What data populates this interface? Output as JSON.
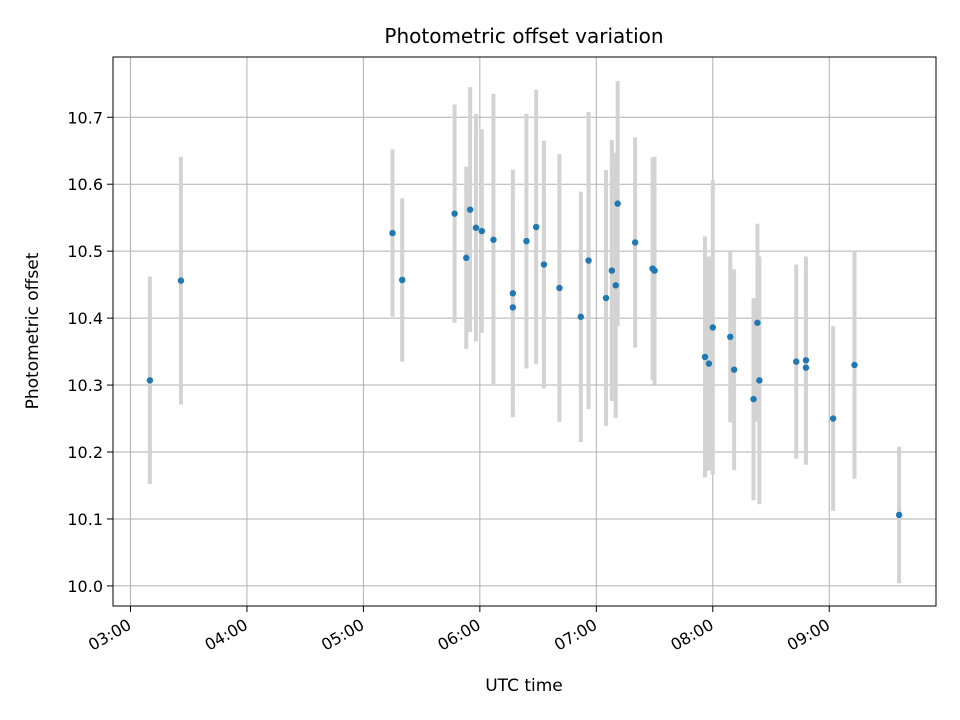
{
  "chart_data": {
    "type": "scatter",
    "title": "Photometric offset variation",
    "xlabel": "UTC time",
    "ylabel": "Photometric offset",
    "x_ticks": [
      "03:00",
      "04:00",
      "05:00",
      "06:00",
      "07:00",
      "08:00",
      "09:00"
    ],
    "y_ticks": [
      "10.0",
      "10.1",
      "10.2",
      "10.3",
      "10.4",
      "10.5",
      "10.6",
      "10.7"
    ],
    "xlim": [
      "02:51",
      "09:55"
    ],
    "ylim": [
      9.97,
      10.79
    ],
    "grid": true,
    "colors": {
      "point": "#1f77b4",
      "errorbar": "#d3d3d3",
      "grid": "#b0b0b0"
    },
    "series": [
      {
        "points": [
          {
            "x": "03:10",
            "y": 10.307,
            "err": 0.155
          },
          {
            "x": "03:26",
            "y": 10.456,
            "err": 0.185
          },
          {
            "x": "05:15",
            "y": 10.527,
            "err": 0.125
          },
          {
            "x": "05:20",
            "y": 10.457,
            "err": 0.122
          },
          {
            "x": "05:47",
            "y": 10.556,
            "err": 0.163
          },
          {
            "x": "05:53",
            "y": 10.49,
            "err": 0.136
          },
          {
            "x": "05:55",
            "y": 10.562,
            "err": 0.183
          },
          {
            "x": "05:58",
            "y": 10.535,
            "err": 0.17
          },
          {
            "x": "06:01",
            "y": 10.53,
            "err": 0.152
          },
          {
            "x": "06:07",
            "y": 10.517,
            "err": 0.218
          },
          {
            "x": "06:17",
            "y": 10.416,
            "err": 0.16
          },
          {
            "x": "06:17",
            "y": 10.437,
            "err": 0.185
          },
          {
            "x": "06:24",
            "y": 10.515,
            "err": 0.19
          },
          {
            "x": "06:29",
            "y": 10.536,
            "err": 0.205
          },
          {
            "x": "06:33",
            "y": 10.48,
            "err": 0.185
          },
          {
            "x": "06:41",
            "y": 10.445,
            "err": 0.2
          },
          {
            "x": "06:52",
            "y": 10.402,
            "err": 0.187
          },
          {
            "x": "06:56",
            "y": 10.486,
            "err": 0.222
          },
          {
            "x": "07:05",
            "y": 10.43,
            "err": 0.191
          },
          {
            "x": "07:08",
            "y": 10.471,
            "err": 0.195
          },
          {
            "x": "07:10",
            "y": 10.449,
            "err": 0.198
          },
          {
            "x": "07:11",
            "y": 10.571,
            "err": 0.183
          },
          {
            "x": "07:20",
            "y": 10.513,
            "err": 0.157
          },
          {
            "x": "07:29",
            "y": 10.474,
            "err": 0.166
          },
          {
            "x": "07:30",
            "y": 10.471,
            "err": 0.17
          },
          {
            "x": "07:56",
            "y": 10.342,
            "err": 0.18
          },
          {
            "x": "07:58",
            "y": 10.332,
            "err": 0.16
          },
          {
            "x": "08:00",
            "y": 10.386,
            "err": 0.22
          },
          {
            "x": "08:09",
            "y": 10.372,
            "err": 0.128
          },
          {
            "x": "08:11",
            "y": 10.323,
            "err": 0.15
          },
          {
            "x": "08:21",
            "y": 10.279,
            "err": 0.151
          },
          {
            "x": "08:23",
            "y": 10.393,
            "err": 0.148
          },
          {
            "x": "08:24",
            "y": 10.307,
            "err": 0.185
          },
          {
            "x": "08:43",
            "y": 10.335,
            "err": 0.145
          },
          {
            "x": "08:48",
            "y": 10.337,
            "err": 0.155
          },
          {
            "x": "08:48",
            "y": 10.326,
            "err": 0.145
          },
          {
            "x": "09:02",
            "y": 10.25,
            "err": 0.138
          },
          {
            "x": "09:13",
            "y": 10.33,
            "err": 0.17
          },
          {
            "x": "09:36",
            "y": 10.106,
            "err": 0.102
          }
        ]
      }
    ]
  }
}
